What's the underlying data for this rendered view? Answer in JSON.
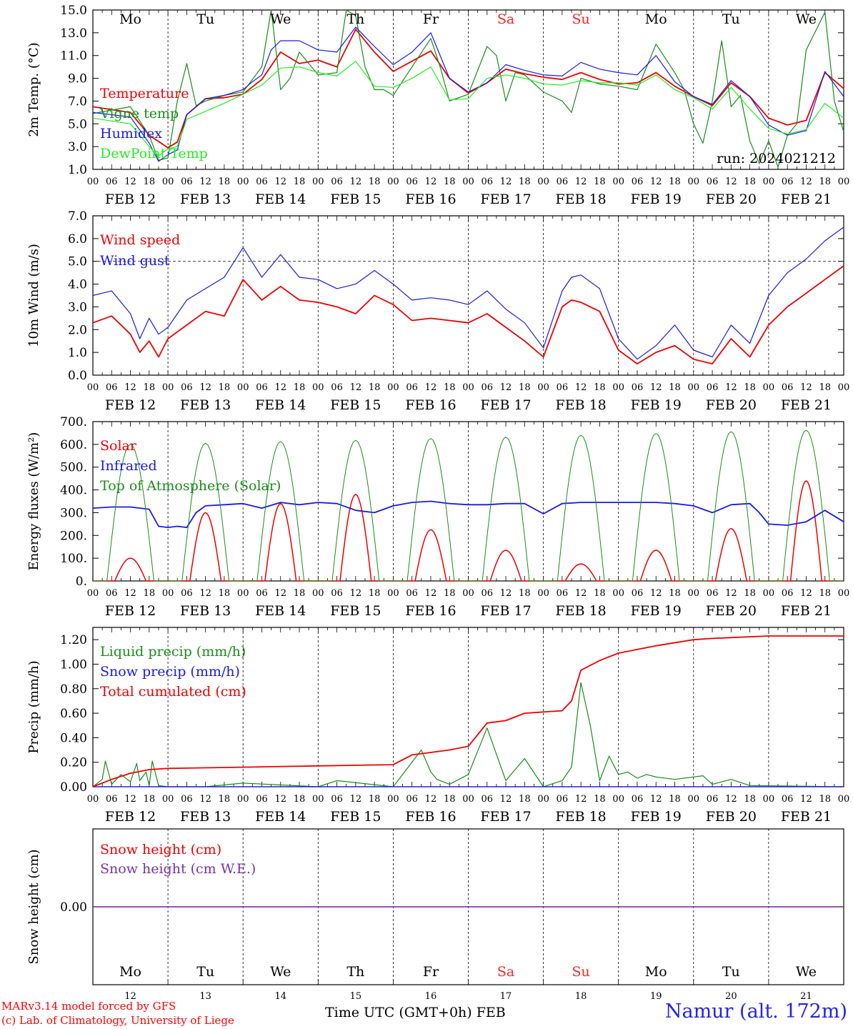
{
  "days": {
    "top_labels": [
      "Mo",
      "Tu",
      "We",
      "Th",
      "Fr",
      "Sa",
      "Su",
      "Mo",
      "Tu",
      "We"
    ],
    "bottom_numbers": [
      "12",
      "13",
      "14",
      "15",
      "16",
      "17",
      "18",
      "19",
      "20",
      "21"
    ],
    "dates": [
      "FEB 12",
      "FEB 13",
      "FEB 14",
      "FEB 15",
      "FEB 16",
      "FEB 17",
      "FEB 18",
      "FEB 19",
      "FEB 20",
      "FEB 21"
    ],
    "weekend_color": "#ff2222",
    "weekday_color": "#000000",
    "weekend_index": [
      5,
      6
    ],
    "hour_ticks": [
      "00",
      "06",
      "12",
      "18"
    ],
    "end_tick": "00"
  },
  "footer": {
    "model": "MARv3.14 model forced by GFS",
    "lab": "(c) Lab. of Climatology, University of Liege",
    "xtitle": "Time UTC (GMT+0h) FEB",
    "station": "Namur (alt. 172m)"
  },
  "chart_data": [
    {
      "type": "line",
      "ylabel": "2m Temp. (°C)",
      "ylim": [
        1.0,
        15.0
      ],
      "yticks": [
        "1.0",
        "3.0",
        "5.0",
        "7.0",
        "9.0",
        "11.0",
        "13.0",
        "15.0"
      ],
      "annotation": "run: 2024021212",
      "x_unit": "hours since Feb 12 00 UTC",
      "series": [
        {
          "name": "Temperature",
          "color": "#ee0000",
          "width": 1.8,
          "x": [
            0,
            12,
            18,
            24,
            27,
            30,
            36,
            42,
            48,
            54,
            60,
            66,
            72,
            78,
            84,
            90,
            96,
            102,
            108,
            114,
            120,
            126,
            132,
            138,
            144,
            150,
            156,
            162,
            168,
            174,
            180,
            186,
            192,
            198,
            204,
            210,
            216,
            222,
            228,
            234,
            240
          ],
          "values": [
            6.5,
            6.0,
            4.0,
            2.9,
            3.4,
            5.8,
            7.2,
            7.3,
            7.6,
            8.9,
            11.3,
            10.3,
            10.6,
            10.0,
            13.3,
            11.3,
            9.6,
            10.5,
            11.4,
            9.0,
            7.7,
            8.6,
            9.8,
            9.4,
            9.1,
            8.9,
            9.5,
            8.9,
            8.5,
            8.6,
            9.5,
            8.3,
            7.4,
            6.6,
            8.6,
            7.4,
            5.5,
            4.9,
            5.3,
            9.5,
            8.1
          ]
        },
        {
          "name": "Vigne temp",
          "color": "#1a8c1a",
          "width": 1.2,
          "x": [
            0,
            12,
            18,
            21,
            24,
            27,
            30,
            33,
            36,
            42,
            48,
            54,
            57,
            60,
            63,
            66,
            72,
            78,
            81,
            84,
            87,
            90,
            93,
            96,
            102,
            108,
            111,
            114,
            120,
            126,
            129,
            132,
            135,
            138,
            144,
            150,
            153,
            156,
            162,
            168,
            174,
            180,
            186,
            189,
            192,
            195,
            198,
            201,
            204,
            207,
            210,
            213,
            216,
            219,
            222,
            225,
            228,
            234,
            237,
            240
          ],
          "values": [
            5.9,
            6.5,
            4.0,
            1.8,
            2.0,
            7.0,
            10.3,
            6.6,
            7.0,
            7.5,
            7.8,
            10.0,
            15.0,
            8.0,
            9.0,
            11.3,
            9.3,
            9.5,
            15.0,
            14.5,
            10.0,
            8.0,
            8.0,
            7.5,
            10.0,
            12.5,
            10.0,
            7.0,
            7.6,
            11.8,
            11.0,
            7.0,
            9.5,
            9.3,
            7.8,
            7.0,
            6.0,
            9.0,
            8.5,
            8.3,
            8.0,
            12.0,
            9.5,
            8.0,
            5.0,
            3.3,
            7.0,
            12.3,
            6.5,
            7.5,
            3.5,
            1.5,
            3.5,
            1.2,
            4.0,
            5.0,
            11.5,
            14.8,
            7.0,
            4.3
          ]
        },
        {
          "name": "Humidex",
          "color": "#1a1ae8",
          "width": 1.2,
          "x": [
            0,
            12,
            18,
            21,
            24,
            27,
            30,
            36,
            42,
            48,
            51,
            54,
            57,
            60,
            66,
            72,
            78,
            84,
            90,
            96,
            102,
            108,
            114,
            120,
            126,
            132,
            138,
            144,
            150,
            156,
            162,
            168,
            174,
            180,
            186,
            192,
            198,
            204,
            210,
            216,
            222,
            228,
            234,
            240
          ],
          "values": [
            6.0,
            5.6,
            3.3,
            1.7,
            2.3,
            2.7,
            5.8,
            7.2,
            7.5,
            8.0,
            8.7,
            9.3,
            11.5,
            12.3,
            12.3,
            11.5,
            11.3,
            13.5,
            11.8,
            10.2,
            11.3,
            13.0,
            9.0,
            7.8,
            8.6,
            10.2,
            9.7,
            9.3,
            9.2,
            10.4,
            9.8,
            9.5,
            9.3,
            11.0,
            8.7,
            7.4,
            6.7,
            8.8,
            7.4,
            4.9,
            4.0,
            4.4,
            9.6,
            7.4
          ]
        },
        {
          "name": "DewPoint Temp",
          "color": "#22ee22",
          "width": 1.2,
          "x": [
            0,
            12,
            18,
            21,
            24,
            27,
            30,
            36,
            42,
            48,
            54,
            60,
            66,
            72,
            78,
            84,
            90,
            96,
            102,
            108,
            114,
            120,
            126,
            132,
            138,
            144,
            150,
            156,
            162,
            168,
            174,
            180,
            186,
            192,
            198,
            204,
            210,
            216,
            222,
            228,
            234,
            240
          ],
          "values": [
            5.5,
            5.0,
            3.0,
            2.2,
            2.8,
            3.0,
            5.4,
            6.1,
            6.8,
            7.6,
            8.4,
            9.9,
            10.0,
            9.5,
            9.2,
            10.5,
            8.3,
            8.2,
            9.0,
            10.0,
            7.1,
            7.2,
            9.0,
            9.3,
            9.0,
            8.5,
            8.4,
            8.8,
            8.6,
            8.6,
            8.4,
            9.3,
            8.0,
            7.3,
            6.3,
            8.2,
            6.3,
            4.6,
            4.1,
            4.5,
            6.8,
            5.5
          ]
        }
      ]
    },
    {
      "type": "line",
      "ylabel": "10m Wind (m/s)",
      "ylim": [
        0.0,
        7.0
      ],
      "yticks": [
        "0.0",
        "1.0",
        "2.0",
        "3.0",
        "4.0",
        "5.0",
        "6.0",
        "7.0"
      ],
      "reference_line": 5.0,
      "x_unit": "hours since Feb 12 00 UTC",
      "series": [
        {
          "name": "Wind speed",
          "color": "#ee0000",
          "width": 1.8,
          "x": [
            0,
            6,
            12,
            15,
            18,
            21,
            24,
            30,
            36,
            42,
            48,
            54,
            60,
            66,
            72,
            78,
            84,
            90,
            96,
            102,
            108,
            114,
            120,
            126,
            132,
            138,
            144,
            150,
            153,
            156,
            162,
            168,
            174,
            180,
            186,
            192,
            198,
            204,
            210,
            216,
            222,
            228,
            234,
            240
          ],
          "values": [
            2.3,
            2.6,
            1.8,
            1.0,
            1.5,
            0.8,
            1.6,
            2.2,
            2.8,
            2.6,
            4.2,
            3.3,
            3.9,
            3.3,
            3.2,
            3.0,
            2.7,
            3.5,
            3.1,
            2.4,
            2.5,
            2.4,
            2.3,
            2.7,
            2.1,
            1.5,
            0.8,
            3.0,
            3.3,
            3.2,
            2.8,
            1.1,
            0.5,
            1.0,
            1.3,
            0.7,
            0.5,
            1.6,
            0.8,
            2.2,
            3.0,
            3.6,
            4.2,
            4.8
          ]
        },
        {
          "name": "Wind gust",
          "color": "#1a1ae8",
          "width": 1.2,
          "x": [
            0,
            6,
            12,
            15,
            18,
            21,
            24,
            30,
            36,
            42,
            48,
            54,
            60,
            66,
            72,
            78,
            84,
            90,
            96,
            102,
            108,
            114,
            120,
            126,
            132,
            138,
            144,
            150,
            153,
            156,
            162,
            168,
            174,
            180,
            186,
            192,
            198,
            204,
            210,
            216,
            222,
            228,
            234,
            240
          ],
          "values": [
            3.5,
            3.7,
            2.7,
            1.6,
            2.5,
            1.8,
            2.1,
            3.3,
            3.8,
            4.3,
            5.6,
            4.3,
            5.3,
            4.3,
            4.2,
            3.8,
            4.0,
            4.6,
            4.0,
            3.3,
            3.4,
            3.3,
            3.1,
            3.7,
            2.9,
            2.3,
            1.2,
            3.7,
            4.3,
            4.4,
            3.8,
            1.6,
            0.7,
            1.3,
            2.2,
            1.1,
            0.8,
            2.2,
            1.4,
            3.5,
            4.5,
            5.1,
            5.9,
            6.5
          ]
        }
      ]
    },
    {
      "type": "line",
      "ylabel": "Energy fluxes (W/m²)",
      "ylim": [
        0,
        700
      ],
      "yticks": [
        "0.",
        "100.",
        "200.",
        "300.",
        "400.",
        "500.",
        "600.",
        "700."
      ],
      "x_unit": "hours since Feb 12 00 UTC",
      "series": [
        {
          "name": "Solar",
          "color": "#ee0000",
          "width": 1.5,
          "peaks": [
            100,
            300,
            340,
            380,
            225,
            135,
            75,
            135,
            230,
            440
          ],
          "peak_hour": 12,
          "half_width": 5
        },
        {
          "name": "Infrared",
          "color": "#1a1ae8",
          "width": 1.8,
          "x": [
            0,
            6,
            12,
            18,
            21,
            24,
            27,
            30,
            33,
            36,
            42,
            48,
            54,
            60,
            66,
            72,
            78,
            84,
            90,
            96,
            102,
            108,
            114,
            120,
            126,
            132,
            138,
            144,
            150,
            156,
            162,
            168,
            174,
            180,
            186,
            192,
            198,
            204,
            210,
            213,
            216,
            222,
            228,
            234,
            240
          ],
          "values": [
            320,
            325,
            325,
            315,
            240,
            235,
            240,
            235,
            300,
            330,
            335,
            340,
            320,
            345,
            335,
            345,
            340,
            310,
            300,
            330,
            345,
            350,
            340,
            335,
            335,
            340,
            340,
            295,
            340,
            345,
            345,
            345,
            345,
            345,
            340,
            330,
            300,
            335,
            340,
            300,
            250,
            245,
            260,
            310,
            260
          ]
        },
        {
          "name": "Top of Atmosphere (Solar)",
          "color": "#1a8c1a",
          "width": 1.0,
          "peaks": [
            600,
            605,
            612,
            618,
            626,
            632,
            640,
            648,
            656,
            662
          ],
          "peak_hour": 12,
          "half_width": 7.5
        }
      ]
    },
    {
      "type": "line",
      "ylabel": "Precip (mm/h)",
      "ylim": [
        0.0,
        1.3
      ],
      "yticks": [
        "0.00",
        "0.20",
        "0.40",
        "0.60",
        "0.80",
        "1.00",
        "1.20"
      ],
      "x_unit": "hours since Feb 12 00 UTC",
      "series": [
        {
          "name": "Liquid precip (mm/h)",
          "color": "#1a8c1a",
          "width": 1.2,
          "x": [
            0,
            3,
            4,
            6,
            9,
            12,
            14,
            15,
            17,
            18,
            19,
            21,
            24,
            36,
            48,
            72,
            78,
            96,
            105,
            108,
            110,
            114,
            120,
            126,
            132,
            138,
            144,
            150,
            153,
            156,
            159,
            162,
            165,
            168,
            171,
            174,
            177,
            180,
            186,
            195,
            198,
            204,
            210,
            240
          ],
          "values": [
            0.0,
            0.06,
            0.21,
            0.02,
            0.1,
            0.04,
            0.19,
            0.05,
            0.12,
            0.01,
            0.21,
            0.01,
            0.0,
            0.0,
            0.03,
            0.0,
            0.05,
            0.0,
            0.3,
            0.12,
            0.06,
            0.02,
            0.1,
            0.48,
            0.05,
            0.23,
            0.0,
            0.05,
            0.16,
            0.85,
            0.5,
            0.05,
            0.25,
            0.1,
            0.12,
            0.07,
            0.1,
            0.08,
            0.06,
            0.09,
            0.02,
            0.06,
            0.01,
            0.0
          ]
        },
        {
          "name": "Snow precip (mm/h)",
          "color": "#1a1ae8",
          "width": 1.2,
          "x": [
            0,
            240
          ],
          "values": [
            0.0,
            0.0
          ]
        },
        {
          "name": "Total cumulated (cm)",
          "color": "#ee0000",
          "width": 1.8,
          "x": [
            0,
            6,
            12,
            18,
            24,
            48,
            72,
            96,
            102,
            108,
            114,
            120,
            126,
            132,
            138,
            150,
            153,
            156,
            162,
            168,
            180,
            192,
            198,
            216,
            240
          ],
          "values": [
            0.0,
            0.06,
            0.11,
            0.14,
            0.15,
            0.16,
            0.17,
            0.18,
            0.26,
            0.28,
            0.3,
            0.33,
            0.52,
            0.54,
            0.6,
            0.62,
            0.7,
            0.95,
            1.03,
            1.09,
            1.15,
            1.2,
            1.21,
            1.23,
            1.23
          ]
        }
      ]
    },
    {
      "type": "line",
      "ylabel": "Snow height (cm)",
      "ylim": [
        -1.0,
        1.0
      ],
      "yticks": [
        "0.00"
      ],
      "x_unit": "hours since Feb 12 00 UTC",
      "series": [
        {
          "name": "Snow height (cm)",
          "color": "#ee0000",
          "width": 1.2,
          "x": [
            0,
            240
          ],
          "values": [
            0.0,
            0.0
          ]
        },
        {
          "name": "Snow height (cm W.E.)",
          "color": "#7733aa",
          "width": 1.6,
          "x": [
            0,
            240
          ],
          "values": [
            0.0,
            0.0
          ]
        }
      ]
    }
  ]
}
